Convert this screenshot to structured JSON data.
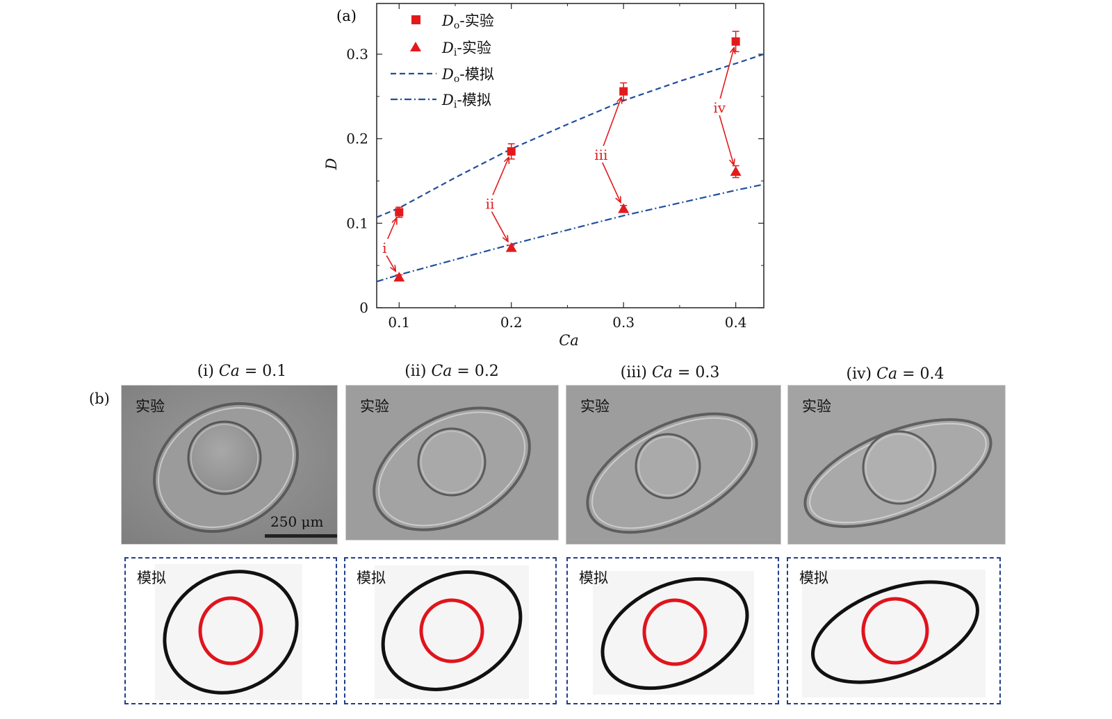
{
  "panel_a_label": "(a)",
  "panel_b_label": "(b)",
  "chart_data": {
    "type": "scatter",
    "xlabel": "Ca",
    "ylabel": "D",
    "xlim": [
      0.08,
      0.425
    ],
    "ylim": [
      0,
      0.36
    ],
    "xticks": [
      0.1,
      0.2,
      0.3,
      0.4
    ],
    "xtick_labels": [
      "0.1",
      "0.2",
      "0.3",
      "0.4"
    ],
    "yticks": [
      0,
      0.1,
      0.2,
      0.3
    ],
    "ytick_labels": [
      "0",
      "0.1",
      "0.2",
      "0.3"
    ],
    "grid": false,
    "legend_position": "top-left",
    "series": [
      {
        "name": "Do-实验",
        "legend_main": "D",
        "legend_sub": "o",
        "legend_suffix": "-实验",
        "kind": "square-markers",
        "color": "#e31a1c",
        "x": [
          0.1,
          0.2,
          0.3,
          0.4
        ],
        "y": [
          0.113,
          0.185,
          0.256,
          0.315
        ],
        "err": [
          0.006,
          0.009,
          0.01,
          0.012
        ]
      },
      {
        "name": "Di-实验",
        "legend_main": "D",
        "legend_sub": "i",
        "legend_suffix": "-实验",
        "kind": "triangle-markers",
        "color": "#e31a1c",
        "x": [
          0.1,
          0.2,
          0.3,
          0.4
        ],
        "y": [
          0.036,
          0.071,
          0.117,
          0.161
        ],
        "err": [
          0.003,
          0.003,
          0.004,
          0.007
        ]
      },
      {
        "name": "Do-模拟",
        "legend_main": "D",
        "legend_sub": "o",
        "legend_suffix": "-模拟",
        "kind": "dashed-line",
        "color": "#1f4e9c",
        "x": [
          0.08,
          0.1,
          0.15,
          0.2,
          0.25,
          0.3,
          0.35,
          0.4,
          0.425
        ],
        "y": [
          0.107,
          0.118,
          0.154,
          0.188,
          0.217,
          0.245,
          0.268,
          0.289,
          0.3
        ]
      },
      {
        "name": "Di-模拟",
        "legend_main": "D",
        "legend_sub": "i",
        "legend_suffix": "-模拟",
        "kind": "dashdot-line",
        "color": "#1f4e9c",
        "x": [
          0.08,
          0.1,
          0.2,
          0.3,
          0.4,
          0.425
        ],
        "y": [
          0.031,
          0.039,
          0.075,
          0.109,
          0.139,
          0.146
        ]
      }
    ],
    "annotations": [
      {
        "text": "i",
        "x": 0.085,
        "y": 0.07,
        "arrow_to_square": 0,
        "arrow_to_triangle": 0
      },
      {
        "text": "ii",
        "x": 0.177,
        "y": 0.122,
        "arrow_to_square": 1,
        "arrow_to_triangle": 1
      },
      {
        "text": "iii",
        "x": 0.274,
        "y": 0.18,
        "arrow_to_square": 2,
        "arrow_to_triangle": 2
      },
      {
        "text": "iv",
        "x": 0.38,
        "y": 0.236,
        "arrow_to_square": 3,
        "arrow_to_triangle": 3
      }
    ],
    "annotation_color": "#e31a1c"
  },
  "panels": [
    {
      "roman": "(i)",
      "ca_label": "Ca",
      "eq": "= 0.1",
      "exp_label": "实验",
      "sim_label": "模拟"
    },
    {
      "roman": "(ii)",
      "ca_label": "Ca",
      "eq": "= 0.2",
      "exp_label": "实验",
      "sim_label": "模拟"
    },
    {
      "roman": "(iii)",
      "ca_label": "Ca",
      "eq": "= 0.3",
      "exp_label": "实验",
      "sim_label": "模拟"
    },
    {
      "roman": "(iv)",
      "ca_label": "Ca",
      "eq": "= 0.4",
      "exp_label": "实验",
      "sim_label": "模拟"
    }
  ],
  "scale_bar_label": "250 μm"
}
